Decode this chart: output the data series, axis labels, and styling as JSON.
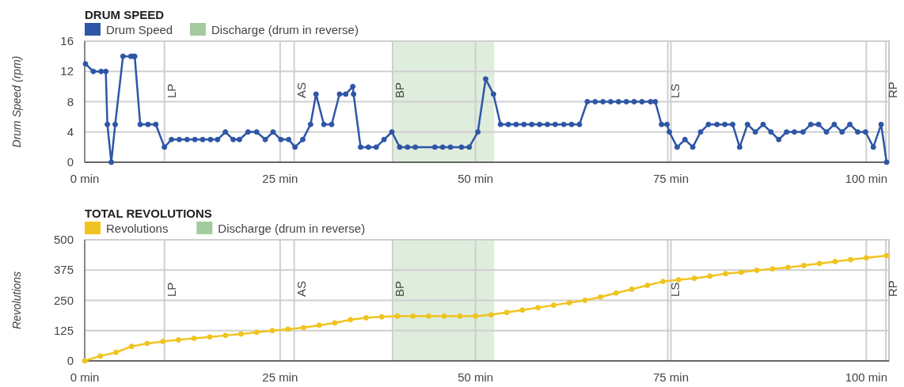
{
  "chart_data": [
    {
      "type": "line",
      "title": "DRUM SPEED",
      "ylabel": "Drum Speed (rpm)",
      "xlim": [
        0,
        102.9
      ],
      "ylim": [
        0,
        16
      ],
      "xticks": [
        {
          "value": 0,
          "label": "0 min"
        },
        {
          "value": 25,
          "label": "25 min"
        },
        {
          "value": 50,
          "label": "50 min"
        },
        {
          "value": 75,
          "label": "75 min"
        },
        {
          "value": 100,
          "label": "100 min"
        }
      ],
      "yticks": [
        0,
        4,
        8,
        12,
        16
      ],
      "grid": true,
      "legend": "top left",
      "marker": "circle",
      "line_style": "solid",
      "series": [
        {
          "name": "Drum Speed",
          "color": "#2f56a6",
          "x": [
            0.1,
            1.1,
            2.1,
            2.7,
            2.9,
            3.4,
            3.9,
            4.9,
            5.9,
            6.2,
            6.4,
            7.1,
            8.1,
            9.1,
            10.2,
            11.1,
            12.1,
            13.1,
            14.1,
            15.1,
            16.1,
            17.0,
            18.0,
            19.0,
            19.8,
            20.9,
            22.0,
            23.1,
            24.1,
            25.1,
            26.1,
            26.9,
            27.9,
            28.9,
            29.6,
            30.6,
            31.6,
            32.6,
            33.4,
            34.3,
            34.4,
            35.3,
            36.3,
            37.3,
            38.3,
            39.3,
            40.3,
            41.3,
            42.3,
            44.8,
            45.8,
            46.8,
            48.2,
            49.2,
            50.3,
            51.3,
            52.3,
            53.2,
            54.2,
            55.2,
            56.2,
            57.2,
            58.2,
            59.2,
            60.2,
            61.3,
            62.3,
            63.3,
            64.3,
            65.3,
            66.3,
            67.3,
            68.3,
            69.3,
            70.3,
            71.3,
            72.4,
            73.0,
            73.8,
            74.5,
            74.8,
            75.8,
            76.8,
            77.8,
            78.8,
            79.8,
            80.9,
            81.9,
            82.9,
            83.8,
            84.8,
            85.8,
            86.8,
            87.8,
            88.8,
            89.8,
            90.8,
            91.9,
            92.9,
            93.9,
            94.9,
            95.9,
            96.9,
            97.9,
            98.9,
            99.9,
            100.9,
            101.9,
            102.6
          ],
          "values": [
            13,
            12,
            12,
            12,
            5,
            0,
            5,
            14,
            14,
            14,
            14,
            5,
            5,
            5,
            2,
            3,
            3,
            3,
            3,
            3,
            3,
            3,
            4,
            3,
            3,
            4,
            4,
            3,
            4,
            3,
            3,
            2,
            3,
            5,
            9,
            5,
            5,
            9,
            9,
            10,
            9,
            2,
            2,
            2,
            3,
            4,
            2,
            2,
            2,
            2,
            2,
            2,
            2,
            2,
            4,
            11,
            9,
            5,
            5,
            5,
            5,
            5,
            5,
            5,
            5,
            5,
            5,
            5,
            8,
            8,
            8,
            8,
            8,
            8,
            8,
            8,
            8,
            8,
            5,
            5,
            4,
            2,
            3,
            2,
            4,
            5,
            5,
            5,
            5,
            2,
            5,
            4,
            5,
            4,
            3,
            4,
            4,
            4,
            5,
            5,
            4,
            5,
            4,
            5,
            4,
            4,
            2,
            5,
            0
          ]
        }
      ],
      "bands": [
        {
          "axis": "x",
          "from": 39.4,
          "to": 52.4,
          "label": "Discharge (drum in reverse)",
          "color": "#a3cb9e"
        }
      ],
      "ref_lines": [
        {
          "axis": "x",
          "value": 10.2,
          "label": "LP"
        },
        {
          "axis": "x",
          "value": 26.8,
          "label": "AS"
        },
        {
          "axis": "x",
          "value": 39.4,
          "label": "BP"
        },
        {
          "axis": "x",
          "value": 74.6,
          "label": "LS"
        },
        {
          "axis": "x",
          "value": 102.5,
          "label": "RP"
        }
      ]
    },
    {
      "type": "line",
      "title": "TOTAL REVOLUTIONS",
      "ylabel": "Revolutions",
      "xlim": [
        0,
        102.9
      ],
      "ylim": [
        0,
        500
      ],
      "xticks": [
        {
          "value": 0,
          "label": "0 min"
        },
        {
          "value": 25,
          "label": "25 min"
        },
        {
          "value": 50,
          "label": "50 min"
        },
        {
          "value": 75,
          "label": "75 min"
        },
        {
          "value": 100,
          "label": "100 min"
        }
      ],
      "yticks": [
        0,
        125,
        250,
        375,
        500
      ],
      "grid": true,
      "legend": "top left",
      "marker": "circle",
      "line_style": "solid",
      "series": [
        {
          "name": "Revolutions",
          "color": "#f0c420",
          "x": [
            0,
            2,
            4,
            6,
            8,
            10,
            12,
            14,
            16,
            18,
            20,
            22,
            24,
            26,
            28,
            30,
            32,
            34,
            36,
            38,
            40,
            42,
            44,
            46,
            48,
            50,
            52,
            54,
            56,
            58,
            60,
            62,
            64,
            66,
            68,
            70,
            72,
            74,
            76,
            78,
            80,
            82,
            84,
            86,
            88,
            90,
            92,
            94,
            96,
            98,
            100,
            102.6
          ],
          "values": [
            0,
            20,
            35,
            60,
            72,
            80,
            87,
            93,
            99,
            105,
            111,
            118,
            125,
            131,
            137,
            147,
            157,
            170,
            178,
            182,
            185,
            185,
            185,
            185,
            185,
            185,
            190,
            200,
            210,
            220,
            230,
            240,
            250,
            264,
            280,
            296,
            312,
            328,
            335,
            341,
            350,
            360,
            366,
            374,
            380,
            386,
            394,
            402,
            410,
            418,
            426,
            435
          ]
        }
      ],
      "bands": [
        {
          "axis": "x",
          "from": 39.4,
          "to": 52.4,
          "label": "Discharge (drum in reverse)",
          "color": "#a3cb9e"
        }
      ],
      "ref_lines": [
        {
          "axis": "x",
          "value": 10.2,
          "label": "LP"
        },
        {
          "axis": "x",
          "value": 26.8,
          "label": "AS"
        },
        {
          "axis": "x",
          "value": 39.4,
          "label": "BP"
        },
        {
          "axis": "x",
          "value": 74.6,
          "label": "LS"
        },
        {
          "axis": "x",
          "value": 102.5,
          "label": "RP"
        }
      ]
    }
  ]
}
